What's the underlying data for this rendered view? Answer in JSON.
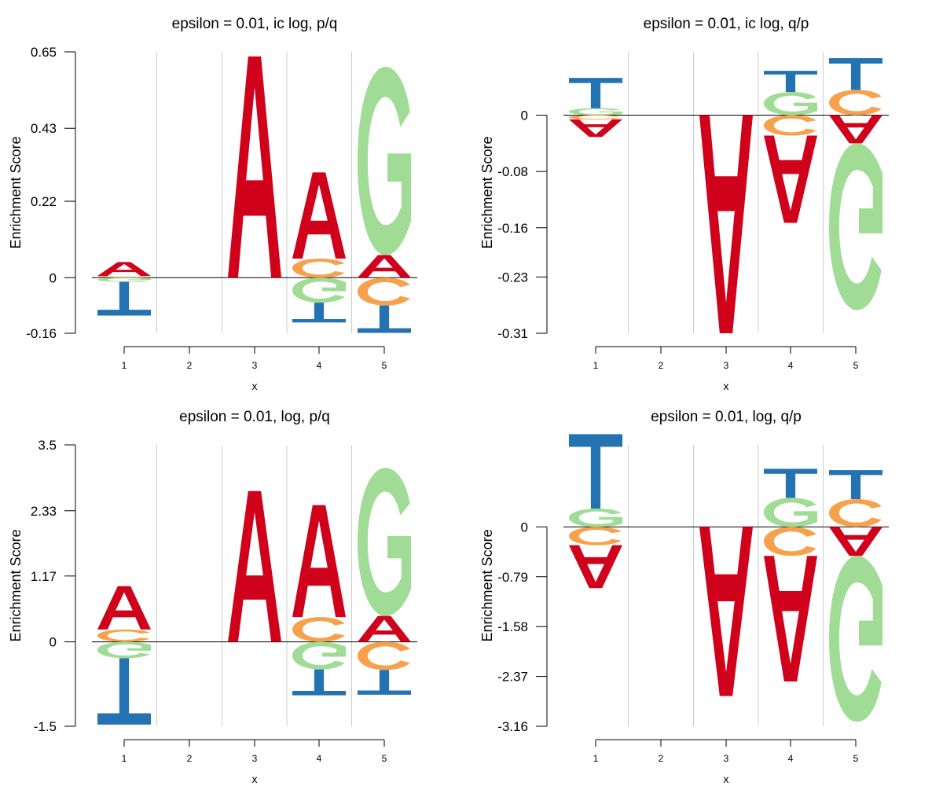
{
  "colors": {
    "A": "#d0021b",
    "C": "#f7a14d",
    "G": "#a0dc96",
    "T": "#2372b1"
  },
  "chart_data": [
    {
      "type": "sequence-logo",
      "title": "epsilon = 0.01, ic log, p/q",
      "xlabel": "x",
      "ylabel": "Enrichment Score",
      "x": [
        "1",
        "2",
        "3",
        "4",
        "5"
      ],
      "yticks": [
        "0.65",
        "0.43",
        "0.22",
        "0",
        "-0.16"
      ],
      "ylim": [
        -0.16,
        0.65
      ],
      "baseline": 0,
      "stacks": [
        {
          "pos": 1,
          "up": [
            {
              "letter": "C",
              "h": 0.005
            },
            {
              "letter": "A",
              "h": 0.04
            }
          ],
          "down": [
            {
              "letter": "G",
              "h": 0.012
            },
            {
              "letter": "T",
              "h": 0.097
            }
          ]
        },
        {
          "pos": 2,
          "up": [],
          "down": []
        },
        {
          "pos": 3,
          "up": [
            {
              "letter": "A",
              "h": 0.637
            }
          ],
          "down": []
        },
        {
          "pos": 4,
          "up": [
            {
              "letter": "C",
              "h": 0.055
            },
            {
              "letter": "A",
              "h": 0.248
            }
          ],
          "down": [
            {
              "letter": "G",
              "h": 0.072
            },
            {
              "letter": "T",
              "h": 0.057
            }
          ]
        },
        {
          "pos": 5,
          "up": [
            {
              "letter": "A",
              "h": 0.065
            },
            {
              "letter": "G",
              "h": 0.542
            }
          ],
          "down": [
            {
              "letter": "C",
              "h": 0.08
            },
            {
              "letter": "T",
              "h": 0.079
            }
          ]
        }
      ]
    },
    {
      "type": "sequence-logo",
      "title": "epsilon = 0.01, ic log, q/p",
      "xlabel": "x",
      "ylabel": "Enrichment Score",
      "x": [
        "1",
        "2",
        "3",
        "4",
        "5"
      ],
      "yticks": [
        "0",
        "-0.08",
        "-0.16",
        "-0.23",
        "-0.31"
      ],
      "ylim": [
        -0.31,
        0.09
      ],
      "baseline": 0,
      "stacks": [
        {
          "pos": 1,
          "up": [
            {
              "letter": "G",
              "h": 0.01
            },
            {
              "letter": "T",
              "h": 0.043
            }
          ],
          "down": [
            {
              "letter": "C",
              "h": 0.006
            },
            {
              "letter": "A",
              "h": 0.025
            }
          ]
        },
        {
          "pos": 2,
          "up": [],
          "down": []
        },
        {
          "pos": 3,
          "up": [],
          "down": [
            {
              "letter": "A",
              "h": 0.31
            }
          ]
        },
        {
          "pos": 4,
          "up": [
            {
              "letter": "G",
              "h": 0.033
            },
            {
              "letter": "T",
              "h": 0.03
            }
          ],
          "down": [
            {
              "letter": "C",
              "h": 0.029
            },
            {
              "letter": "A",
              "h": 0.124
            }
          ]
        },
        {
          "pos": 5,
          "up": [
            {
              "letter": "C",
              "h": 0.036
            },
            {
              "letter": "T",
              "h": 0.045
            }
          ],
          "down": [
            {
              "letter": "A",
              "h": 0.04
            },
            {
              "letter": "G",
              "h": 0.237
            }
          ]
        }
      ]
    },
    {
      "type": "sequence-logo",
      "title": "epsilon = 0.01, log, p/q",
      "xlabel": "x",
      "ylabel": "Enrichment Score",
      "x": [
        "1",
        "2",
        "3",
        "4",
        "5"
      ],
      "yticks": [
        "3.5",
        "2.33",
        "1.17",
        "0",
        "-1.5"
      ],
      "ylim": [
        -1.5,
        3.5
      ],
      "baseline": 0,
      "stacks": [
        {
          "pos": 1,
          "up": [
            {
              "letter": "C",
              "h": 0.22
            },
            {
              "letter": "A",
              "h": 0.77
            }
          ],
          "down": [
            {
              "letter": "G",
              "h": 0.29
            },
            {
              "letter": "T",
              "h": 1.18
            }
          ]
        },
        {
          "pos": 2,
          "up": [],
          "down": []
        },
        {
          "pos": 3,
          "up": [
            {
              "letter": "A",
              "h": 2.68
            }
          ],
          "down": []
        },
        {
          "pos": 4,
          "up": [
            {
              "letter": "C",
              "h": 0.44
            },
            {
              "letter": "A",
              "h": 1.99
            }
          ],
          "down": [
            {
              "letter": "G",
              "h": 0.49
            },
            {
              "letter": "T",
              "h": 0.46
            }
          ]
        },
        {
          "pos": 5,
          "up": [
            {
              "letter": "A",
              "h": 0.46
            },
            {
              "letter": "G",
              "h": 2.63
            }
          ],
          "down": [
            {
              "letter": "C",
              "h": 0.5
            },
            {
              "letter": "T",
              "h": 0.44
            }
          ]
        }
      ]
    },
    {
      "type": "sequence-logo",
      "title": "epsilon = 0.01, log, q/p",
      "xlabel": "x",
      "ylabel": "Enrichment Score",
      "x": [
        "1",
        "2",
        "3",
        "4",
        "5"
      ],
      "yticks": [
        "0",
        "-0.79",
        "-1.58",
        "-2.37",
        "-3.16"
      ],
      "ylim": [
        -3.16,
        1.3
      ],
      "baseline": 0,
      "stacks": [
        {
          "pos": 1,
          "up": [
            {
              "letter": "G",
              "h": 0.29
            },
            {
              "letter": "T",
              "h": 1.18
            }
          ],
          "down": [
            {
              "letter": "C",
              "h": 0.29
            },
            {
              "letter": "A",
              "h": 0.68
            }
          ]
        },
        {
          "pos": 2,
          "up": [],
          "down": []
        },
        {
          "pos": 3,
          "up": [],
          "down": [
            {
              "letter": "A",
              "h": 2.68
            }
          ]
        },
        {
          "pos": 4,
          "up": [
            {
              "letter": "G",
              "h": 0.46
            },
            {
              "letter": "T",
              "h": 0.46
            }
          ],
          "down": [
            {
              "letter": "C",
              "h": 0.46
            },
            {
              "letter": "A",
              "h": 1.99
            }
          ]
        },
        {
          "pos": 5,
          "up": [
            {
              "letter": "C",
              "h": 0.44
            },
            {
              "letter": "T",
              "h": 0.46
            }
          ],
          "down": [
            {
              "letter": "A",
              "h": 0.46
            },
            {
              "letter": "G",
              "h": 2.63
            }
          ]
        }
      ]
    }
  ]
}
